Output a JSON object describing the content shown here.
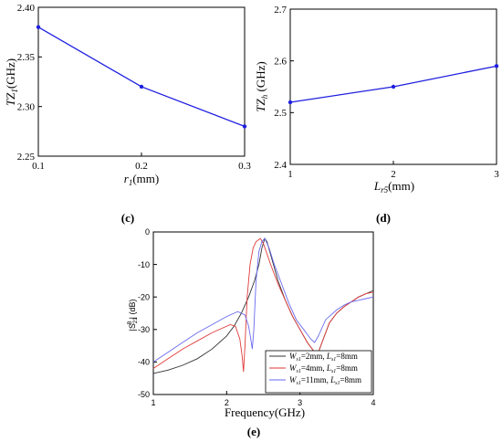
{
  "chart_data": [
    {
      "id": "c",
      "type": "line",
      "panel_label": "(c)",
      "x": [
        0.1,
        0.2,
        0.3
      ],
      "series": [
        {
          "values": [
            2.38,
            2.32,
            2.28
          ],
          "color": "#1f1fe0"
        }
      ],
      "xlim": [
        0.1,
        0.3
      ],
      "ylim": [
        2.25,
        2.4
      ],
      "xticks": [
        "0.1",
        "0.2",
        "0.3"
      ],
      "yticks": [
        "2.25",
        "2.30",
        "2.35",
        "2.40"
      ],
      "xlabel": {
        "main": "r",
        "sub": "1",
        "unit": "(mm)"
      },
      "ylabel": {
        "main": "TZ",
        "sub": "1",
        "unit": "(GHz)"
      }
    },
    {
      "id": "d",
      "type": "line",
      "panel_label": "(d)",
      "x": [
        1,
        2,
        3
      ],
      "series": [
        {
          "values": [
            2.52,
            2.55,
            2.59
          ],
          "color": "#1f1fe0"
        }
      ],
      "xlim": [
        1,
        3
      ],
      "ylim": [
        2.4,
        2.7
      ],
      "xticks": [
        "1",
        "2",
        "3"
      ],
      "yticks": [
        "2.4",
        "2.5",
        "2.6",
        "2.7"
      ],
      "xlabel": {
        "main": "L",
        "sub": "r5",
        "unit": "(mm)"
      },
      "ylabel": {
        "main": "TZ",
        "sub": "h",
        "unit": " (GHz)"
      }
    },
    {
      "id": "e",
      "type": "line",
      "panel_label": "(e)",
      "xlim": [
        1,
        4
      ],
      "ylim": [
        -50,
        0
      ],
      "xticks": [
        "1",
        "2",
        "3",
        "4"
      ],
      "yticks": [
        "0",
        "-10",
        "-20",
        "-30",
        "-40",
        "-50"
      ],
      "xlabel": "Frequency(GHz)",
      "ylabel": {
        "pre": "|S",
        "sub": "21",
        "sup": "B",
        "post": "| (dB)"
      },
      "legend_position": "bottom-right",
      "series": [
        {
          "name_parts": [
            "W",
            "s1",
            "=2mm, ",
            "L",
            "s1",
            "=8mm"
          ],
          "color": "#333333",
          "points": [
            [
              1.0,
              -43.5
            ],
            [
              1.2,
              -42.5
            ],
            [
              1.4,
              -41
            ],
            [
              1.6,
              -39
            ],
            [
              1.8,
              -36
            ],
            [
              2.0,
              -32
            ],
            [
              2.1,
              -29
            ],
            [
              2.2,
              -25
            ],
            [
              2.3,
              -20
            ],
            [
              2.38,
              -15
            ],
            [
              2.44,
              -10
            ],
            [
              2.48,
              -5
            ],
            [
              2.52,
              -2
            ],
            [
              2.55,
              -3
            ],
            [
              2.6,
              -7
            ],
            [
              2.7,
              -15
            ],
            [
              2.8,
              -21
            ],
            [
              2.9,
              -26
            ],
            [
              3.0,
              -30
            ],
            [
              3.1,
              -34
            ],
            [
              3.2,
              -37
            ],
            [
              3.25,
              -37
            ],
            [
              3.3,
              -34
            ],
            [
              3.4,
              -28
            ],
            [
              3.5,
              -25
            ],
            [
              3.6,
              -23
            ],
            [
              3.7,
              -21.5
            ],
            [
              3.8,
              -20
            ],
            [
              3.9,
              -19
            ],
            [
              4.0,
              -18
            ]
          ]
        },
        {
          "name_parts": [
            "W",
            "s1",
            "=4mm, ",
            "L",
            "s1",
            "=8mm"
          ],
          "color": "#e03a3a",
          "points": [
            [
              1.0,
              -42
            ],
            [
              1.2,
              -39
            ],
            [
              1.4,
              -36
            ],
            [
              1.6,
              -33.5
            ],
            [
              1.8,
              -31
            ],
            [
              1.95,
              -29.5
            ],
            [
              2.05,
              -28.5
            ],
            [
              2.12,
              -29
            ],
            [
              2.18,
              -33
            ],
            [
              2.21,
              -38
            ],
            [
              2.23,
              -43
            ],
            [
              2.25,
              -35
            ],
            [
              2.28,
              -20
            ],
            [
              2.32,
              -10
            ],
            [
              2.36,
              -5
            ],
            [
              2.4,
              -3
            ],
            [
              2.46,
              -2
            ],
            [
              2.5,
              -3.5
            ],
            [
              2.6,
              -10
            ],
            [
              2.7,
              -16
            ],
            [
              2.8,
              -21
            ],
            [
              2.9,
              -26
            ],
            [
              3.0,
              -30
            ],
            [
              3.1,
              -34
            ],
            [
              3.2,
              -37
            ],
            [
              3.25,
              -37
            ],
            [
              3.3,
              -34
            ],
            [
              3.4,
              -28
            ],
            [
              3.5,
              -25
            ],
            [
              3.6,
              -23
            ],
            [
              3.7,
              -21.5
            ],
            [
              3.8,
              -20
            ],
            [
              3.9,
              -19
            ],
            [
              4.0,
              -18.5
            ]
          ]
        },
        {
          "name_parts": [
            "W",
            "s1",
            "=11mm, ",
            "L",
            "s1",
            "=8mm"
          ],
          "color": "#6a6af0",
          "points": [
            [
              1.0,
              -40
            ],
            [
              1.2,
              -37
            ],
            [
              1.4,
              -34
            ],
            [
              1.6,
              -31
            ],
            [
              1.8,
              -28.5
            ],
            [
              2.0,
              -26
            ],
            [
              2.15,
              -24.5
            ],
            [
              2.25,
              -25.5
            ],
            [
              2.3,
              -29
            ],
            [
              2.33,
              -33
            ],
            [
              2.35,
              -36
            ],
            [
              2.37,
              -30
            ],
            [
              2.4,
              -15
            ],
            [
              2.44,
              -6
            ],
            [
              2.48,
              -3
            ],
            [
              2.52,
              -2
            ],
            [
              2.58,
              -5
            ],
            [
              2.65,
              -10
            ],
            [
              2.75,
              -16
            ],
            [
              2.85,
              -22
            ],
            [
              2.95,
              -27
            ],
            [
              3.05,
              -30
            ],
            [
              3.15,
              -33
            ],
            [
              3.2,
              -34
            ],
            [
              3.25,
              -32
            ],
            [
              3.35,
              -27
            ],
            [
              3.5,
              -24
            ],
            [
              3.6,
              -22.5
            ],
            [
              3.7,
              -21.5
            ],
            [
              3.8,
              -21
            ],
            [
              3.9,
              -20.5
            ],
            [
              4.0,
              -20
            ]
          ]
        }
      ]
    }
  ]
}
